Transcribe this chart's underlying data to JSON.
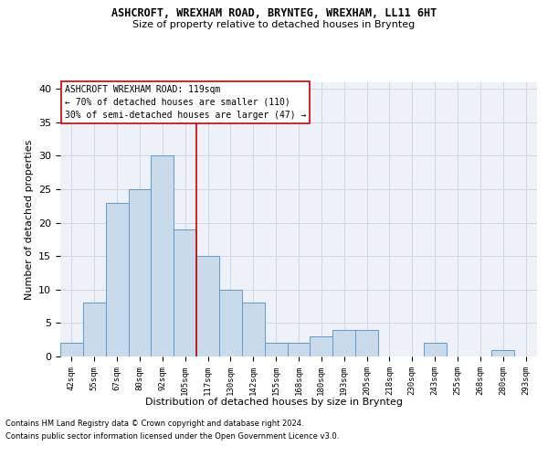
{
  "title": "ASHCROFT, WREXHAM ROAD, BRYNTEG, WREXHAM, LL11 6HT",
  "subtitle": "Size of property relative to detached houses in Brynteg",
  "xlabel": "Distribution of detached houses by size in Brynteg",
  "ylabel": "Number of detached properties",
  "bin_labels": [
    "42sqm",
    "55sqm",
    "67sqm",
    "80sqm",
    "92sqm",
    "105sqm",
    "117sqm",
    "130sqm",
    "142sqm",
    "155sqm",
    "168sqm",
    "180sqm",
    "193sqm",
    "205sqm",
    "218sqm",
    "230sqm",
    "243sqm",
    "255sqm",
    "268sqm",
    "280sqm",
    "293sqm"
  ],
  "bar_heights": [
    2,
    8,
    23,
    25,
    30,
    19,
    15,
    10,
    8,
    2,
    2,
    3,
    4,
    4,
    0,
    0,
    2,
    0,
    0,
    1,
    0
  ],
  "bar_color": "#c9daea",
  "bar_edge_color": "#5b9bd5",
  "property_label": "ASHCROFT WREXHAM ROAD: 119sqm",
  "annotation_line1": "← 70% of detached houses are smaller (110)",
  "annotation_line2": "30% of semi-detached houses are larger (47) →",
  "vline_color": "#cc0000",
  "vline_bin_index": 5.5,
  "annotation_box_color": "#ffffff",
  "annotation_box_edgecolor": "#cc0000",
  "ylim": [
    0,
    41
  ],
  "yticks": [
    0,
    5,
    10,
    15,
    20,
    25,
    30,
    35,
    40
  ],
  "grid_color": "#d0d8e8",
  "background_color": "#eef2f8",
  "footer_line1": "Contains HM Land Registry data © Crown copyright and database right 2024.",
  "footer_line2": "Contains public sector information licensed under the Open Government Licence v3.0."
}
